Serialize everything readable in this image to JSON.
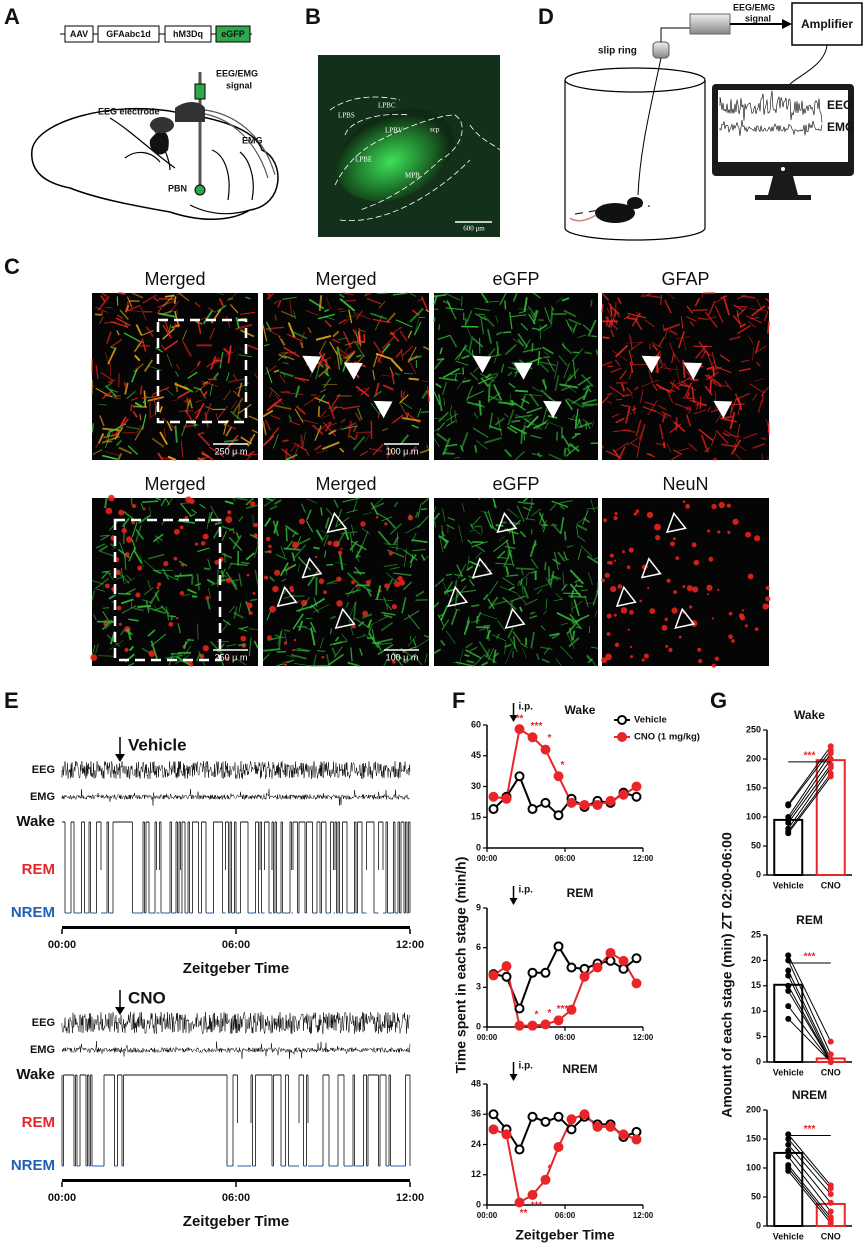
{
  "panels": {
    "A": {
      "letter": "A",
      "construct": [
        "AAV",
        "GFAabc1d",
        "hM3Dq",
        "eGFP"
      ],
      "signal": [
        "EEG/EMG",
        "signal"
      ],
      "electrode": "EEG electrode",
      "emg": "EMG",
      "region": "PBN"
    },
    "B": {
      "letter": "B",
      "regions": [
        "LPBS",
        "LPBC",
        "LPBV",
        "LPBE",
        "scp",
        "MPB"
      ],
      "scale": "600 μm"
    },
    "C": {
      "letter": "C",
      "row1": [
        "Merged",
        "Merged",
        "eGFP",
        "GFAP"
      ],
      "row2": [
        "Merged",
        "Merged",
        "eGFP",
        "NeuN"
      ],
      "scales": [
        "250 μ m",
        "100 μ m",
        "250 μ m",
        "100 μ m"
      ]
    },
    "D": {
      "letter": "D",
      "signal": [
        "EEG/EMG",
        "signal"
      ],
      "amplifier": "Amplifier",
      "slip_ring": "slip ring",
      "eeg": "EEG",
      "emg": "EMG"
    },
    "E": {
      "letter": "E",
      "traces": [
        {
          "condition": "Vehicle",
          "eeg": "EEG",
          "emg": "EMG",
          "stages": [
            "Wake",
            "REM",
            "NREM"
          ],
          "ticks": [
            "00:00",
            "06:00",
            "12:00"
          ],
          "xlabel": "Zeitgeber Time"
        },
        {
          "condition": "CNO",
          "eeg": "EEG",
          "emg": "EMG",
          "stages": [
            "Wake",
            "REM",
            "NREM"
          ],
          "ticks": [
            "00:00",
            "06:00",
            "12:00"
          ],
          "xlabel": "Zeitgeber Time"
        }
      ]
    },
    "F": {
      "letter": "F"
    },
    "G": {
      "letter": "G"
    }
  },
  "chart_data": [
    {
      "type": "line",
      "title": "Wake",
      "annotation": "i.p.",
      "ylabel": "Time spent in each stage (min/h)",
      "x": [
        0.5,
        1.5,
        2.5,
        3.5,
        4.5,
        5.5,
        6.5,
        7.5,
        8.5,
        9.5,
        10.5,
        11.5
      ],
      "xlim": [
        0,
        12
      ],
      "xticks": [
        {
          "value": 0,
          "label": "00:00"
        },
        {
          "value": 6,
          "label": "06:00"
        },
        {
          "value": 12,
          "label": "12:00"
        }
      ],
      "ylim": [
        0,
        60
      ],
      "yticks": [
        0,
        15,
        30,
        45,
        60
      ],
      "series": [
        {
          "name": "Vehicle",
          "color": "#000000",
          "marker": "open",
          "values": [
            19,
            25,
            35,
            19,
            22,
            16,
            24,
            20,
            23,
            22,
            27,
            25
          ]
        },
        {
          "name": "CNO (1 mg/kg)",
          "color": "#e8262a",
          "marker": "filled",
          "values": [
            25,
            24,
            58,
            54,
            48,
            35,
            22,
            21,
            21,
            23,
            26,
            30
          ],
          "significance": [
            null,
            null,
            "**",
            "***",
            "*",
            "*",
            null,
            null,
            null,
            null,
            null,
            null
          ]
        }
      ]
    },
    {
      "type": "line",
      "title": "REM",
      "annotation": "i.p.",
      "x": [
        0.5,
        1.5,
        2.5,
        3.5,
        4.5,
        5.5,
        6.5,
        7.5,
        8.5,
        9.5,
        10.5,
        11.5
      ],
      "xlim": [
        0,
        12
      ],
      "xticks": [
        {
          "value": 0,
          "label": "00:00"
        },
        {
          "value": 6,
          "label": "06:00"
        },
        {
          "value": 12,
          "label": "12:00"
        }
      ],
      "ylim": [
        0,
        9
      ],
      "yticks": [
        0,
        3,
        6,
        9
      ],
      "series": [
        {
          "color": "#000000",
          "marker": "open",
          "values": [
            4.0,
            3.8,
            1.4,
            4.1,
            4.1,
            6.1,
            4.5,
            4.4,
            4.8,
            5.0,
            4.4,
            5.2
          ]
        },
        {
          "color": "#e8262a",
          "marker": "filled",
          "values": [
            3.9,
            4.6,
            0.1,
            0.1,
            0.2,
            0.5,
            1.3,
            3.8,
            4.5,
            5.6,
            5.0,
            3.3
          ],
          "significance": [
            null,
            null,
            null,
            "*",
            "*",
            "***",
            null,
            null,
            null,
            null,
            null,
            null
          ]
        }
      ]
    },
    {
      "type": "line",
      "title": "NREM",
      "annotation": "i.p.",
      "xlabel": "Zeitgeber Time",
      "x": [
        0.5,
        1.5,
        2.5,
        3.5,
        4.5,
        5.5,
        6.5,
        7.5,
        8.5,
        9.5,
        10.5,
        11.5
      ],
      "xlim": [
        0,
        12
      ],
      "xticks": [
        {
          "value": 0,
          "label": "00:00"
        },
        {
          "value": 6,
          "label": "06:00"
        },
        {
          "value": 12,
          "label": "12:00"
        }
      ],
      "ylim": [
        0,
        48
      ],
      "yticks": [
        0,
        12,
        24,
        36,
        48
      ],
      "series": [
        {
          "color": "#000000",
          "marker": "open",
          "values": [
            36,
            30,
            22,
            35,
            33,
            35,
            30,
            35,
            32,
            32,
            27,
            29
          ]
        },
        {
          "color": "#e8262a",
          "marker": "filled",
          "values": [
            30,
            28,
            1,
            4,
            10,
            23,
            34,
            36,
            31,
            31,
            28,
            26
          ],
          "significance": [
            null,
            null,
            "**",
            "***",
            "*",
            null,
            null,
            null,
            null,
            null,
            null,
            null
          ]
        }
      ]
    },
    {
      "type": "bar",
      "title": "Wake",
      "ylabel": "Amount of each stage (min) ZT 02:00-06:00",
      "significance": "***",
      "categories": [
        "Vehicle",
        "CNO"
      ],
      "values": [
        95,
        198
      ],
      "colors": [
        "#000000",
        "#e8262a"
      ],
      "points": [
        [
          122,
          120,
          100,
          95,
          90,
          80,
          75,
          72
        ],
        [
          222,
          215,
          210,
          200,
          190,
          185,
          175,
          170
        ]
      ],
      "ylim": [
        0,
        250
      ],
      "yticks": [
        0,
        50,
        100,
        150,
        200,
        250
      ]
    },
    {
      "type": "bar",
      "title": "REM",
      "significance": "***",
      "categories": [
        "Vehicle",
        "CNO"
      ],
      "values": [
        15.2,
        0.7
      ],
      "colors": [
        "#000000",
        "#e8262a"
      ],
      "points": [
        [
          21,
          20,
          18,
          17,
          15,
          14,
          11,
          8.5
        ],
        [
          4,
          1.5,
          0.5,
          0,
          0,
          0,
          0,
          0
        ]
      ],
      "ylim": [
        0,
        25
      ],
      "yticks": [
        0,
        5,
        10,
        15,
        20,
        25
      ]
    },
    {
      "type": "bar",
      "title": "NREM",
      "significance": "***",
      "categories": [
        "Vehicle",
        "CNO"
      ],
      "values": [
        126,
        38
      ],
      "colors": [
        "#000000",
        "#e8262a"
      ],
      "points": [
        [
          158,
          150,
          140,
          130,
          120,
          105,
          100,
          95
        ],
        [
          70,
          65,
          55,
          40,
          25,
          15,
          10,
          5
        ]
      ],
      "ylim": [
        0,
        200
      ],
      "yticks": [
        0,
        50,
        100,
        150,
        200
      ]
    }
  ]
}
